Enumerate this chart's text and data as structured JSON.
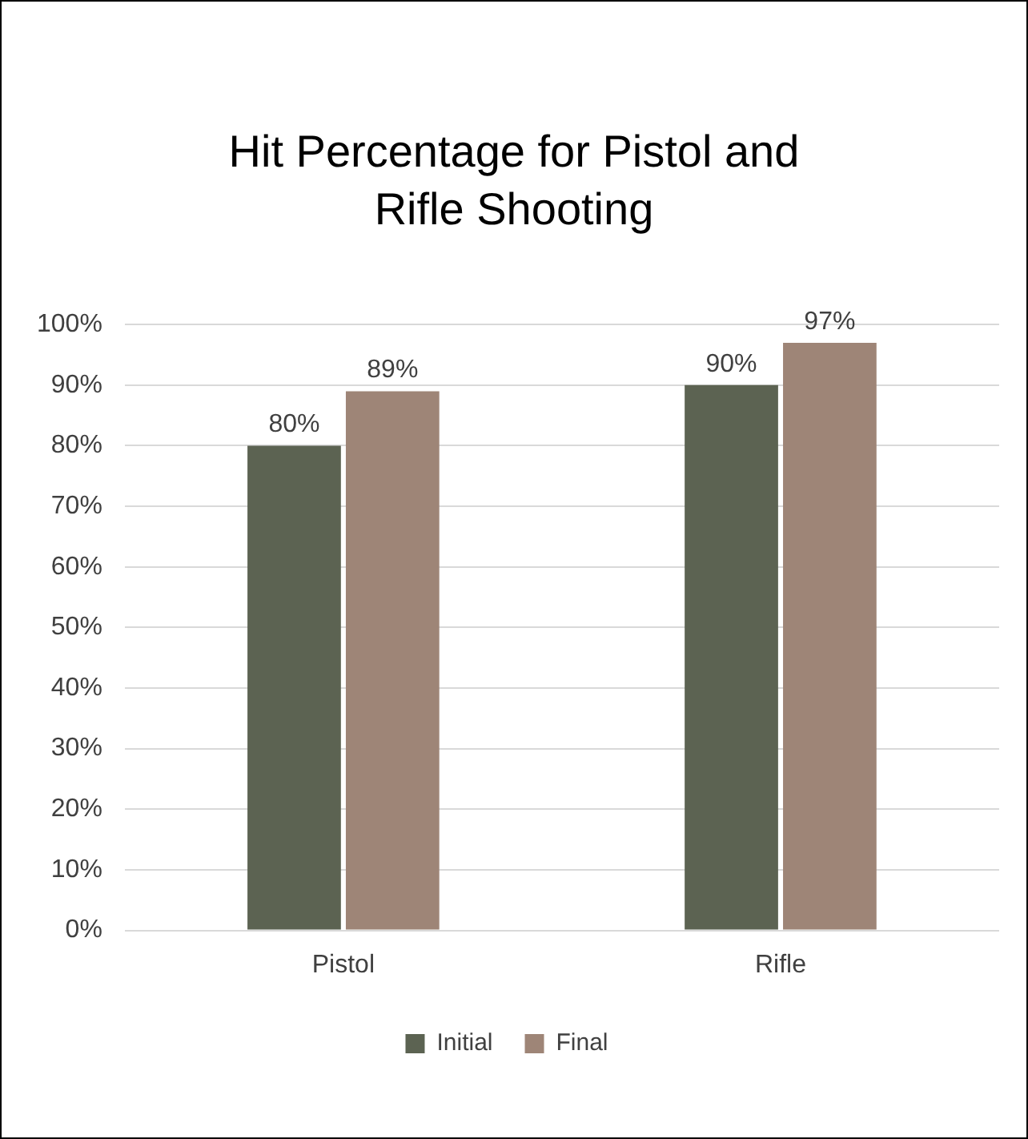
{
  "chart_data": {
    "type": "bar",
    "title": "Hit Percentage for Pistol and Rifle Shooting",
    "categories": [
      "Pistol",
      "Rifle"
    ],
    "series": [
      {
        "name": "Initial",
        "color": "#5c6352",
        "values": [
          80,
          90
        ],
        "value_labels": [
          "80%",
          "90%"
        ]
      },
      {
        "name": "Final",
        "color": "#9e8577",
        "values": [
          89,
          97
        ],
        "value_labels": [
          "89%",
          "97%"
        ]
      }
    ],
    "ylim": [
      0,
      100
    ],
    "yticks": [
      {
        "value": 0,
        "label": "0%"
      },
      {
        "value": 10,
        "label": "10%"
      },
      {
        "value": 20,
        "label": "20%"
      },
      {
        "value": 30,
        "label": "30%"
      },
      {
        "value": 40,
        "label": "40%"
      },
      {
        "value": 50,
        "label": "50%"
      },
      {
        "value": 60,
        "label": "60%"
      },
      {
        "value": 70,
        "label": "70%"
      },
      {
        "value": 80,
        "label": "80%"
      },
      {
        "value": 90,
        "label": "90%"
      },
      {
        "value": 100,
        "label": "100%"
      }
    ],
    "grid": "y",
    "legend": "bottom"
  }
}
